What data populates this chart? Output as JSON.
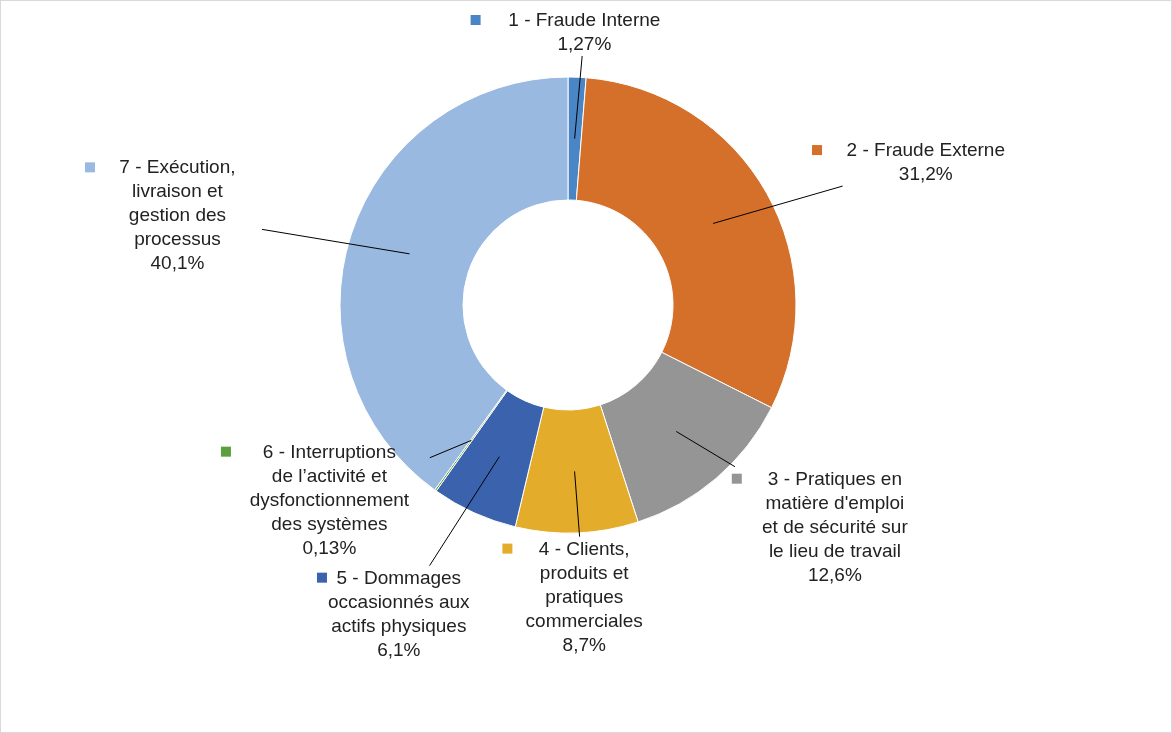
{
  "chart_data": {
    "type": "donut",
    "categories": [
      "1 - Fraude Interne",
      "2 - Fraude Externe",
      "3 - Pratiques en matière d'emploi et de sécurité sur le lieu de travail",
      "4 - Clients, produits et pratiques commerciales",
      "5 - Dommages occasionnés aux actifs physiques",
      "6 - Interruptions de l’activité et dysfonctionnement des systèmes",
      "7 - Exécution, livraison et gestion des processus"
    ],
    "values": [
      1.27,
      31.2,
      12.6,
      8.7,
      6.1,
      0.13,
      40.1
    ],
    "value_labels": [
      "1,27%",
      "31,2%",
      "12,6%",
      "8,7%",
      "6,1%",
      "0,13%",
      "40,1%"
    ],
    "legend": true,
    "colors": [
      "#4a86c5",
      "#d4702a",
      "#959595",
      "#e3ac2a",
      "#3b62ad",
      "#5aa03f",
      "#9ab9e1"
    ]
  }
}
